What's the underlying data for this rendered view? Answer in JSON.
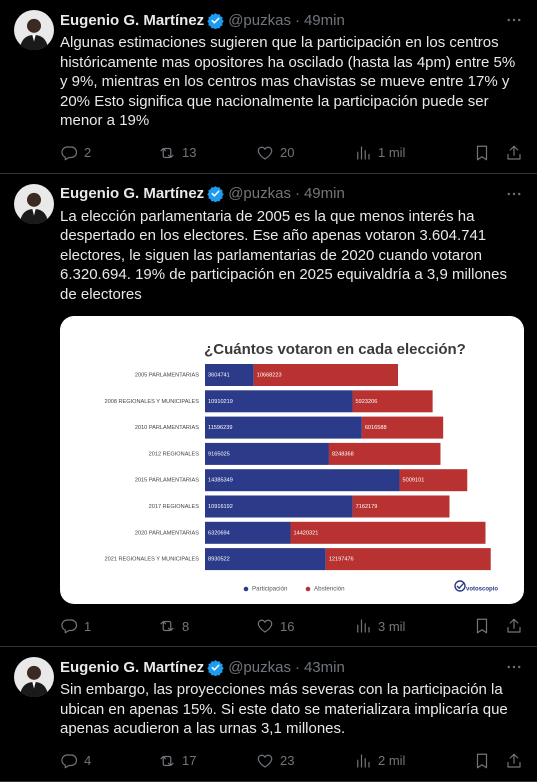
{
  "tweets": [
    {
      "name": "Eugenio G. Martínez",
      "handle": "@puzkas",
      "time": "49min",
      "text": "Algunas estimaciones sugieren que la participación en los centros históricamente mas opositores ha oscilado (hasta las 4pm) entre 5% y 9%, mientras en los centros mas chavistas se mueve entre 17% y 20% Esto significa que nacionalmente la participación puede ser menor a 19%",
      "replies": 2,
      "reposts": 13,
      "likes": 20,
      "views": "1 mil"
    },
    {
      "name": "Eugenio G. Martínez",
      "handle": "@puzkas",
      "time": "49min",
      "text": "La elección parlamentaria de 2005 es la que menos interés ha despertado en los electores. Ese año apenas votaron 3.604.741 electores, le siguen las parlamentarias de 2020 cuando votaron 6.320.694. 19% de participación en 2025 equivaldría a 3,9 millones de electores",
      "replies": 1,
      "reposts": 8,
      "likes": 16,
      "views": "3 mil"
    },
    {
      "name": "Eugenio G. Martínez",
      "handle": "@puzkas",
      "time": "43min",
      "text": "Sin embargo, las proyecciones más severas con la participación la ubican en apenas 15%. Si este dato se materializara implicaría que apenas acudieron a las urnas 3,1 millones.",
      "replies": 4,
      "reposts": 17,
      "likes": 23,
      "views": "2 mil"
    }
  ],
  "chart_data": {
    "type": "bar",
    "orientation": "horizontal",
    "stacked": true,
    "title": "¿Cuántos votaron en cada elección?",
    "categories": [
      "2005 PARLAMENTARIAS",
      "2008 REGIONALES Y MUNICIPALES",
      "2010 PARLAMENTARIAS",
      "2012 REGIONALES",
      "2015 PARLAMENTARIAS",
      "2017 REGIONALES",
      "2020 PARLAMENTARIAS",
      "2021 REGIONALES Y MUNICIPALES"
    ],
    "series": [
      {
        "name": "Participación",
        "color": "#2c3a8a",
        "values": [
          3604741,
          10910219,
          11596239,
          9165025,
          14385349,
          10916192,
          6320694,
          8930522
        ]
      },
      {
        "name": "Abstención",
        "color": "#b83232",
        "values": [
          10668223,
          5923206,
          6016588,
          8248368,
          5009101,
          7162179,
          14420321,
          12197476
        ]
      }
    ],
    "legend": "bottom",
    "source_logo": "votoscopio"
  }
}
